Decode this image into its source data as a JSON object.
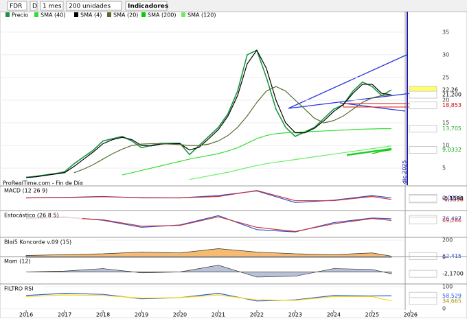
{
  "toolbar": [
    "FDR",
    "D",
    "1 mes",
    "200 unidades",
    "Indicadores"
  ],
  "chart_data": [
    {
      "type": "line",
      "source": "ProRealTime.com - Fin de Día",
      "annotation": "dic 2025",
      "x": [
        2016,
        2016.25,
        2016.5,
        2016.75,
        2017,
        2017.25,
        2017.5,
        2017.75,
        2018,
        2018.25,
        2018.5,
        2018.75,
        2019,
        2019.25,
        2019.5,
        2019.75,
        2020,
        2020.25,
        2020.5,
        2020.75,
        2021,
        2021.25,
        2021.5,
        2021.75,
        2022,
        2022.25,
        2022.5,
        2022.75,
        2023,
        2023.25,
        2023.5,
        2023.75,
        2024,
        2024.25,
        2024.5,
        2024.75,
        2025,
        2025.25,
        2025.5
      ],
      "series": [
        {
          "name": "Precio",
          "color": "#1a9641",
          "values": [
            3,
            3.2,
            3.5,
            3.8,
            4.2,
            6,
            7.5,
            9,
            11,
            11.5,
            12,
            11,
            9.5,
            10,
            10.5,
            10.5,
            10.5,
            8,
            10,
            12,
            14,
            17,
            22,
            30,
            31,
            25,
            18,
            14,
            12,
            13,
            14,
            16,
            18,
            19,
            22,
            24,
            23,
            21,
            22.26
          ]
        },
        {
          "name": "SMA (40)",
          "color": "#33dd33",
          "values": [
            null,
            null,
            null,
            null,
            null,
            null,
            null,
            null,
            null,
            null,
            3.5,
            4,
            4.5,
            5,
            5.5,
            6,
            6.5,
            7,
            7.4,
            7.8,
            8.2,
            8.8,
            9.5,
            10.5,
            11.5,
            12.2,
            12.6,
            12.8,
            12.9,
            13,
            13.1,
            13.2,
            13.3,
            13.4,
            13.5,
            13.6,
            13.65,
            13.7,
            13.705
          ]
        },
        {
          "name": "SMA (4)",
          "color": "#000000",
          "values": [
            2.9,
            3.1,
            3.4,
            3.7,
            4,
            5.4,
            7,
            8.6,
            10.4,
            11.3,
            11.8,
            11.3,
            10,
            9.9,
            10.3,
            10.4,
            10.4,
            9,
            9.6,
            11.5,
            13.5,
            16.5,
            21,
            28,
            31,
            27,
            20,
            15,
            12.8,
            12.8,
            13.8,
            15.5,
            17.5,
            19,
            21.5,
            23.5,
            23.5,
            21.5,
            21.2
          ]
        },
        {
          "name": "SMA (20)",
          "color": "#556b2f",
          "values": [
            null,
            null,
            null,
            null,
            null,
            4,
            4.8,
            5.8,
            7,
            8.2,
            9.2,
            10,
            10.3,
            10.4,
            10.4,
            10.3,
            10.2,
            10,
            10,
            10.3,
            11,
            12.2,
            14,
            16.5,
            19.5,
            22,
            23,
            22,
            20,
            18,
            16,
            15,
            15.5,
            16.5,
            18,
            19.5,
            20.5,
            21,
            21.2
          ]
        },
        {
          "name": "SMA (200)",
          "color": "#00cc00",
          "values": [
            null,
            null,
            null,
            null,
            null,
            null,
            null,
            null,
            null,
            null,
            null,
            null,
            null,
            null,
            null,
            null,
            null,
            null,
            null,
            null,
            null,
            null,
            null,
            null,
            null,
            null,
            null,
            null,
            null,
            null,
            null,
            null,
            null,
            null,
            null,
            null,
            8.2,
            8.7,
            9.0332
          ]
        },
        {
          "name": "SMA (120)",
          "color": "#66ee66",
          "values": [
            null,
            null,
            null,
            null,
            null,
            null,
            null,
            null,
            null,
            null,
            null,
            null,
            null,
            null,
            null,
            null,
            null,
            2.5,
            2.9,
            3.3,
            3.7,
            4.1,
            4.6,
            5.1,
            5.6,
            6,
            6.3,
            6.6,
            6.9,
            7.2,
            7.5,
            7.8,
            8.1,
            8.4,
            8.7,
            9,
            9.3,
            9.6,
            9.9
          ]
        }
      ],
      "xlim": [
        2015.32,
        2025.86
      ],
      "ylim": [
        2,
        38
      ],
      "yticks": [
        5,
        10,
        15,
        20,
        25,
        30,
        35
      ],
      "xticks": [
        2016,
        2017,
        2018,
        2019,
        2020,
        2021,
        2022,
        2023,
        2024,
        2025,
        2026
      ],
      "price_labels": [
        {
          "value": 22.26,
          "label": "22,26",
          "color": "#000000",
          "bg": "#ffff66"
        },
        {
          "value": 21.2,
          "label": "21,200",
          "color": "#000000",
          "bg": "#ffffff"
        },
        {
          "value": 18.853,
          "label": "18,853",
          "color": "#cc0000",
          "bg": "#ffffff"
        },
        {
          "value": 13.705,
          "label": "13,705",
          "color": "#22aa22",
          "bg": "#ffffff"
        },
        {
          "value": 9.0332,
          "label": "9,0332",
          "color": "#00aa00",
          "bg": "#ffffff"
        }
      ]
    },
    {
      "type": "line",
      "title": "MACD (12 26 9)",
      "x": [
        2016,
        2017,
        2018,
        2019,
        2020,
        2021,
        2022,
        2023,
        2024,
        2025,
        2025.5
      ],
      "series": [
        {
          "color": "#3355cc",
          "values": [
            0,
            0.1,
            0.3,
            0,
            0,
            0.5,
            1.5,
            -1,
            -0.5,
            0.5,
            0.0096
          ]
        },
        {
          "color": "#cc3333",
          "values": [
            0,
            0.05,
            0.25,
            0.05,
            0,
            0.3,
            1.6,
            -0.6,
            -0.6,
            0.3,
            -0.3398
          ]
        }
      ],
      "ylim": [
        -2,
        2
      ],
      "price_labels": [
        {
          "value": 0.0096,
          "label": "0,0096",
          "color": "#3355cc",
          "bg": "#ffffff"
        },
        {
          "value": -0.3398,
          "label": "-0,3398",
          "color": "#cc3333",
          "bg": "#ffffff"
        },
        {
          "value": -0.1598,
          "label": "-0,1598",
          "color": "#000000",
          "bg": "#ffffff"
        }
      ]
    },
    {
      "type": "line",
      "title": "Estocástico (26 8 5)",
      "x": [
        2016,
        2017,
        2018,
        2019,
        2020,
        2021,
        2022,
        2023,
        2024,
        2025,
        2025.5
      ],
      "series": [
        {
          "color": "#3355cc",
          "values": [
            80,
            85,
            70,
            40,
            50,
            90,
            30,
            20,
            60,
            80,
            76.497
          ]
        },
        {
          "color": "#cc3333",
          "values": [
            78,
            82,
            72,
            45,
            48,
            85,
            40,
            22,
            55,
            78,
            69.266
          ]
        }
      ],
      "ylim": [
        0,
        100
      ],
      "price_labels": [
        {
          "value": 76.497,
          "label": "76,497",
          "color": "#3355cc",
          "bg": "#ffffff"
        },
        {
          "value": 69.266,
          "label": "69,266",
          "color": "#cc3333",
          "bg": "#ffffff"
        }
      ]
    },
    {
      "type": "area",
      "title": "Blai5 Koncorde v.09 (15)",
      "x": [
        2016,
        2017,
        2018,
        2019,
        2020,
        2021,
        2022,
        2023,
        2024,
        2025,
        2025.5
      ],
      "series": [
        {
          "color": "#f39c34",
          "values": [
            20,
            30,
            40,
            60,
            50,
            100,
            60,
            40,
            30,
            50,
            12.415
          ]
        }
      ],
      "ylim": [
        0,
        200
      ],
      "yticks": [
        0,
        200
      ],
      "price_labels": [
        {
          "value": 12.415,
          "label": "12,415",
          "color": "#3355cc",
          "bg": "#ffffff"
        }
      ]
    },
    {
      "type": "area",
      "title": "Mom (12)",
      "x": [
        2016,
        2017,
        2018,
        2019,
        2020,
        2021,
        2022,
        2023,
        2024,
        2025,
        2025.5
      ],
      "series": [
        {
          "color": "#9aa6c8",
          "values": [
            0,
            1,
            4,
            -1,
            0,
            8,
            -6,
            -5,
            4,
            3,
            -2.17
          ]
        }
      ],
      "ylim": [
        -15,
        15
      ],
      "price_labels": [
        {
          "value": -2.17,
          "label": "-2,1700",
          "color": "#000000",
          "bg": "#ffffff"
        }
      ]
    },
    {
      "type": "line",
      "title": "FILTRO RSI",
      "x": [
        2016,
        2017,
        2018,
        2019,
        2020,
        2021,
        2022,
        2023,
        2024,
        2025,
        2025.5
      ],
      "series": [
        {
          "color": "#2255ee",
          "values": [
            60,
            70,
            65,
            45,
            50,
            70,
            35,
            40,
            60,
            58,
            58.529
          ]
        },
        {
          "color": "#ffdd00",
          "values": [
            55,
            62,
            60,
            48,
            50,
            62,
            40,
            38,
            55,
            55,
            34.665
          ]
        }
      ],
      "ylim": [
        0,
        100
      ],
      "yticks": [
        0,
        100
      ],
      "price_labels": [
        {
          "value": 58.529,
          "label": "58,529",
          "color": "#2255ee",
          "bg": "#ffffff"
        },
        {
          "value": 34.665,
          "label": "34,665",
          "color": "#aa8800",
          "bg": "#ffffff"
        }
      ]
    }
  ]
}
